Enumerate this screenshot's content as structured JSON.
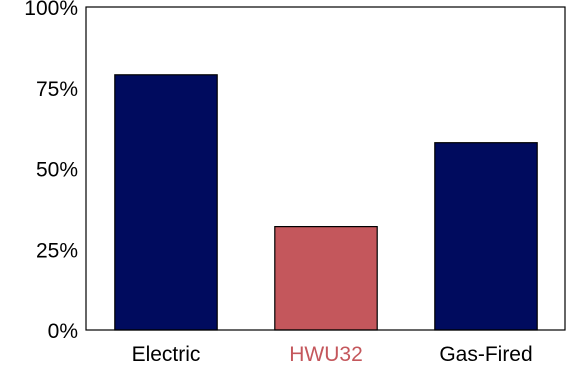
{
  "chart_data": {
    "type": "bar",
    "categories": [
      "Electric",
      "HWU32",
      "Gas-Fired"
    ],
    "values": [
      79,
      32,
      58
    ],
    "bar_colors": [
      "#000b5e",
      "#c4575c",
      "#000b5e"
    ],
    "category_label_colors": [
      "#000000",
      "#c4575c",
      "#000000"
    ],
    "yticks": [
      "0%",
      "25%",
      "50%",
      "75%",
      "100%"
    ],
    "ytick_values": [
      0,
      25,
      50,
      75,
      100
    ],
    "ylim": [
      0,
      100
    ],
    "title": "",
    "xlabel": "",
    "ylabel": "",
    "grid": false,
    "legend": false
  }
}
